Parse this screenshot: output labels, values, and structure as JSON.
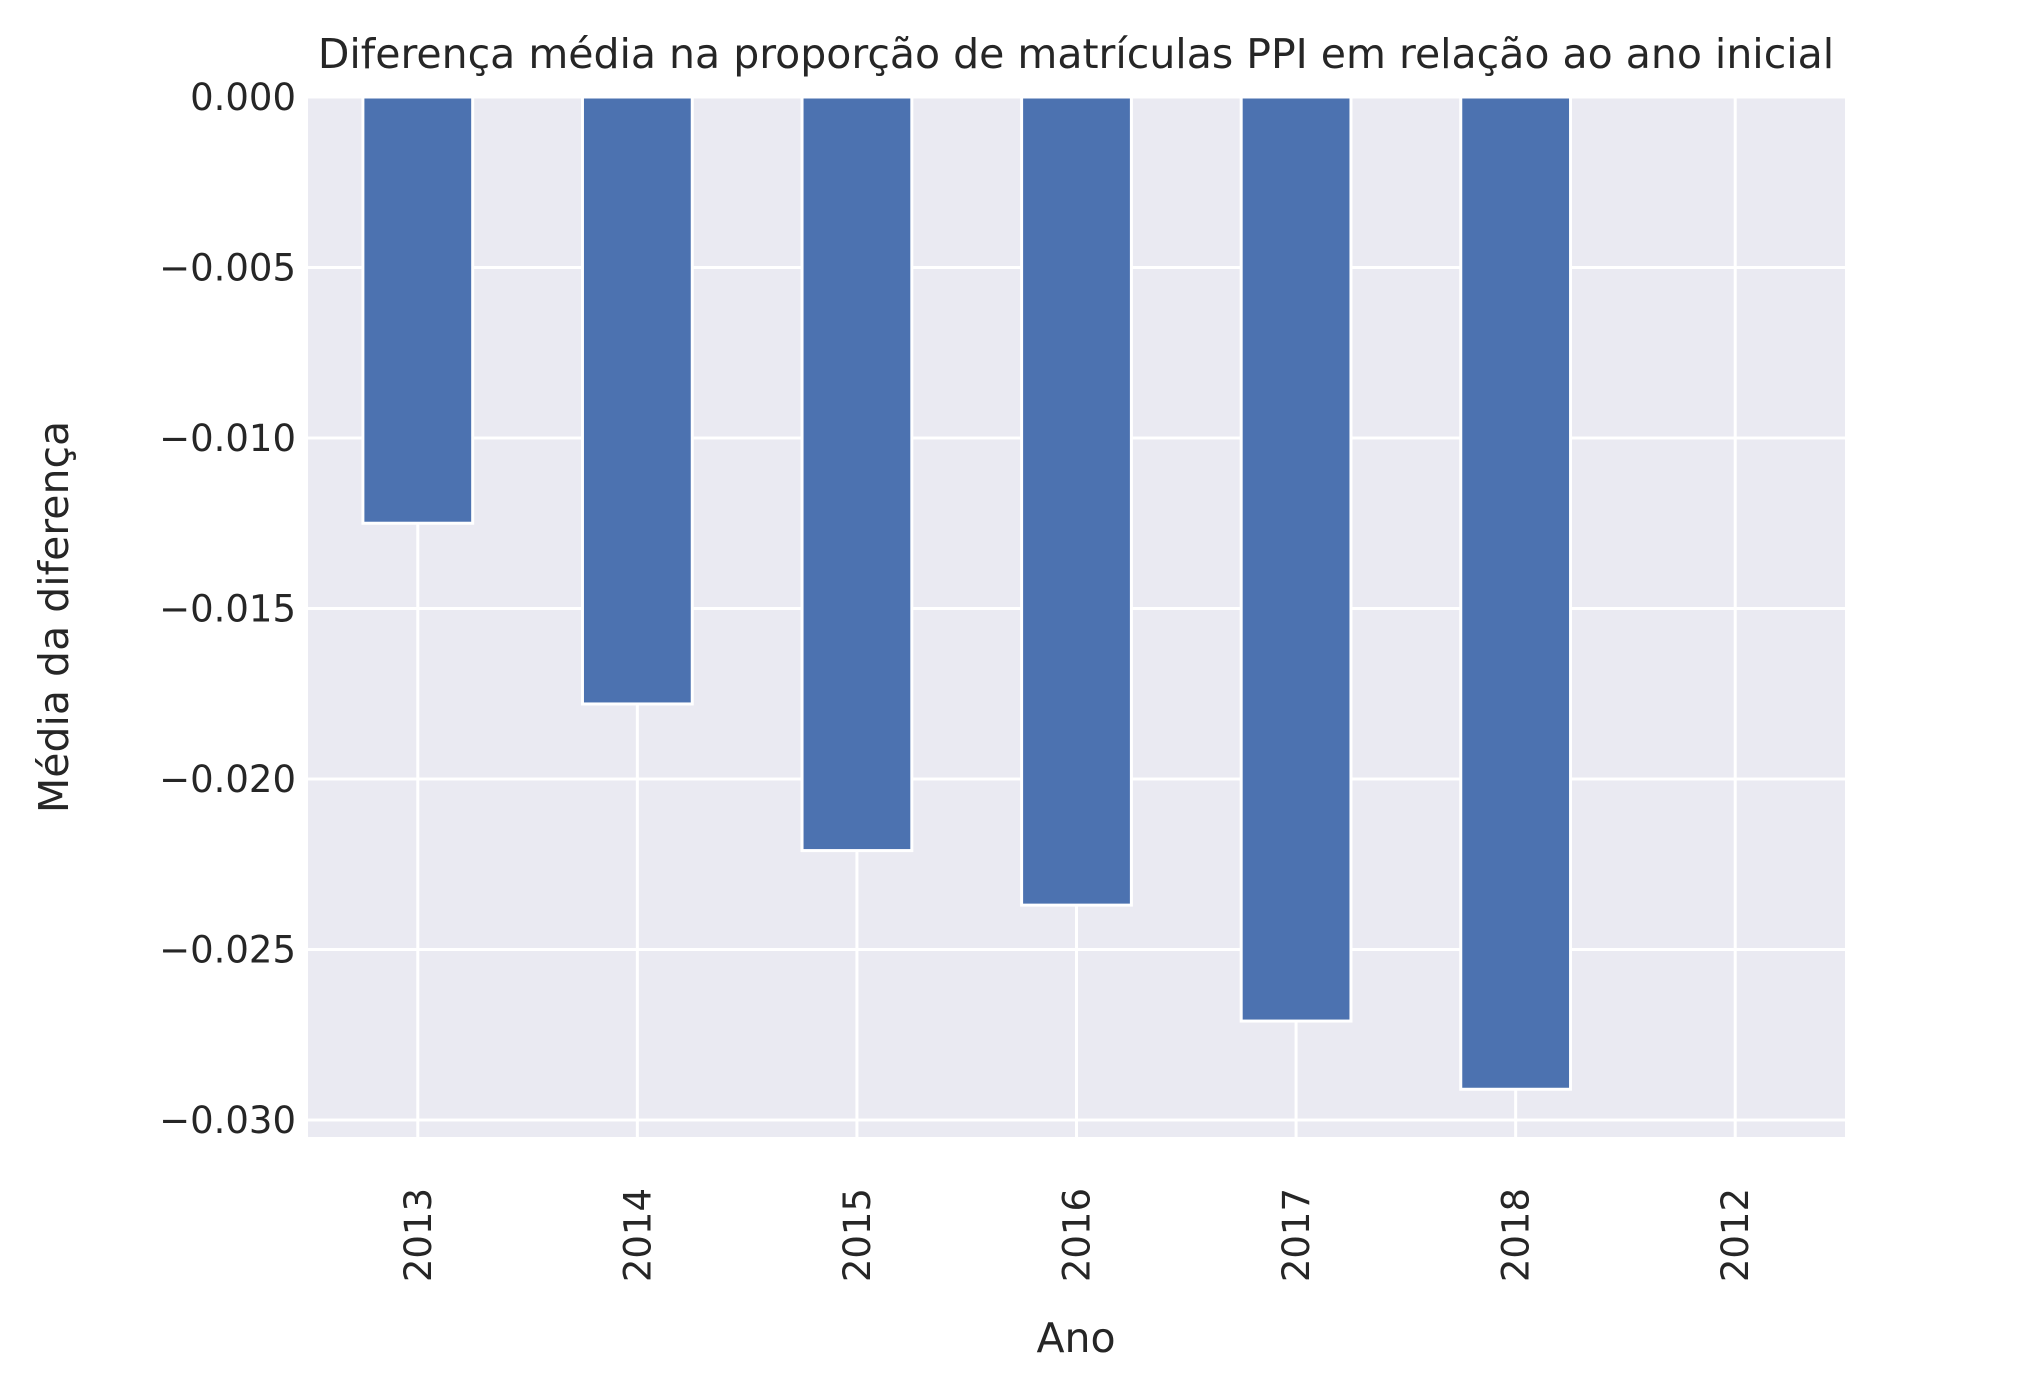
{
  "chart_data": {
    "type": "bar",
    "title": "Diferença média na proporção de matrículas PPI em relação ao ano inicial",
    "xlabel": "Ano",
    "ylabel": "Média da diferença",
    "categories": [
      "2013",
      "2014",
      "2015",
      "2016",
      "2017",
      "2018",
      "2012"
    ],
    "values": [
      -0.0125,
      -0.0178,
      -0.0221,
      -0.0237,
      -0.0271,
      -0.0291,
      0.0
    ],
    "ylim": [
      -0.0305,
      0.0
    ],
    "yticks": [
      0.0,
      -0.005,
      -0.01,
      -0.015,
      -0.02,
      -0.025,
      -0.03
    ],
    "ytick_labels": [
      "0.000",
      "−0.005",
      "−0.010",
      "−0.015",
      "−0.020",
      "−0.025",
      "−0.030"
    ],
    "grid": true,
    "colors": {
      "bar": "#4c72b0",
      "background": "#eaeaf2",
      "grid": "#ffffff",
      "text": "#262626"
    }
  }
}
